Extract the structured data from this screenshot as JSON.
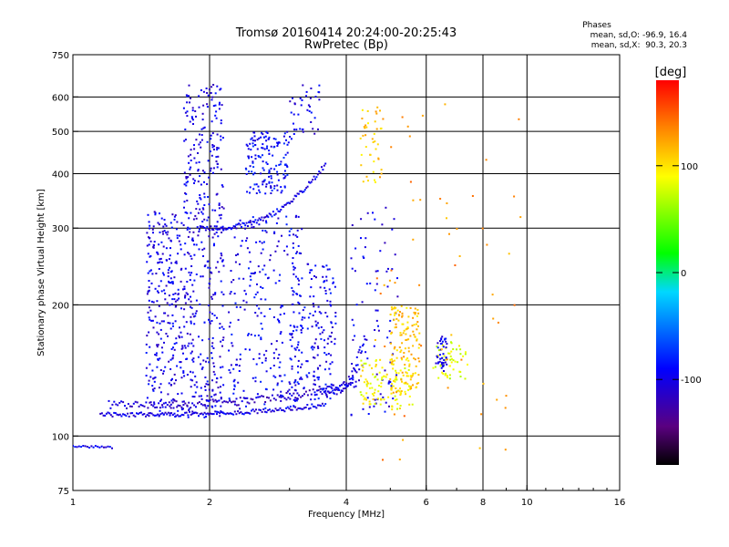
{
  "chart_data": {
    "type": "scatter",
    "title": "Tromsø 20160414 20:24:00-20:25:43",
    "subtitle": "RwPretec (Bp)",
    "xlabel": "Frequency [MHz]",
    "ylabel": "Stationary phase Virtual Height [km]",
    "x_scale": "log",
    "y_scale": "log",
    "xlim": [
      1,
      16
    ],
    "ylim": [
      75,
      750
    ],
    "x_ticks": [
      "1",
      "2",
      "4",
      "6",
      "8",
      "10",
      "16"
    ],
    "y_ticks": [
      "75",
      "100",
      "200",
      "300",
      "400",
      "500",
      "600",
      "750"
    ],
    "x_grid": [
      2,
      4,
      6,
      8,
      10
    ],
    "y_grid": [
      100,
      200,
      300,
      400,
      500,
      600
    ],
    "phases_legend": {
      "title": "Phases",
      "line_o": "mean, sd,O: -96.9, 16.4",
      "line_x": "mean, sd,X:  90.3, 20.3"
    },
    "colorbar": {
      "label": "[deg]",
      "range": [
        -180,
        180
      ],
      "ticks": [
        "100",
        "0",
        "-100"
      ],
      "tick_values": [
        100,
        0,
        -100
      ]
    },
    "series": [
      {
        "phase": -100,
        "trace": "line",
        "x0": 1.0,
        "x1": 1.22,
        "h0": 95,
        "h1": 94,
        "n": 20,
        "jitter": 0.006
      },
      {
        "phase": -100,
        "trace": "curve",
        "x0": 1.15,
        "x1": 3.6,
        "h0": 112,
        "h1": 118,
        "n": 150,
        "jitter": 0.012
      },
      {
        "phase": -110,
        "trace": "curve",
        "x0": 1.2,
        "x1": 4.2,
        "h0": 118,
        "h1": 132,
        "n": 140,
        "jitter": 0.02
      },
      {
        "phase": -100,
        "trace": "curve",
        "x0": 1.9,
        "x1": 3.6,
        "h0": 300,
        "h1": 420,
        "n": 100,
        "jitter": 0.012
      },
      {
        "phase": -100,
        "trace": "curve",
        "x0": 3.6,
        "x1": 4.4,
        "h0": 125,
        "h1": 170,
        "n": 50,
        "jitter": 0.03
      },
      {
        "phase": -100,
        "trace": "cloud",
        "x0": 1.45,
        "x1": 1.75,
        "h0": 110,
        "h1": 330,
        "n": 280
      },
      {
        "phase": -100,
        "trace": "cloud",
        "x0": 1.75,
        "x1": 2.15,
        "h0": 110,
        "h1": 640,
        "n": 420
      },
      {
        "phase": -95,
        "trace": "cloud",
        "x0": 2.2,
        "x1": 3.2,
        "h0": 115,
        "h1": 320,
        "n": 260
      },
      {
        "phase": -90,
        "trace": "cloud",
        "x0": 2.4,
        "x1": 3.0,
        "h0": 360,
        "h1": 500,
        "n": 150
      },
      {
        "phase": -95,
        "trace": "cloud",
        "x0": 3.0,
        "x1": 3.8,
        "h0": 120,
        "h1": 250,
        "n": 180
      },
      {
        "phase": -100,
        "trace": "cloud",
        "x0": 3.0,
        "x1": 3.5,
        "h0": 480,
        "h1": 640,
        "n": 40
      },
      {
        "phase": -100,
        "trace": "cloud",
        "x0": 4.1,
        "x1": 5.2,
        "h0": 110,
        "h1": 340,
        "n": 90
      },
      {
        "phase": 90,
        "trace": "cloud",
        "x0": 4.3,
        "x1": 5.6,
        "h0": 115,
        "h1": 150,
        "n": 110
      },
      {
        "phase": 110,
        "trace": "cloud",
        "x0": 5.0,
        "x1": 5.8,
        "h0": 125,
        "h1": 200,
        "n": 140
      },
      {
        "phase": 80,
        "trace": "cloud",
        "x0": 6.2,
        "x1": 7.4,
        "h0": 135,
        "h1": 165,
        "n": 50
      },
      {
        "phase": 110,
        "trace": "cloud",
        "x0": 4.3,
        "x1": 4.8,
        "h0": 380,
        "h1": 580,
        "n": 40
      },
      {
        "phase": -100,
        "trace": "cloud",
        "x0": 6.3,
        "x1": 6.7,
        "h0": 140,
        "h1": 170,
        "n": 40
      },
      {
        "phase": 130,
        "trace": "cloud",
        "x0": 4.6,
        "x1": 9.8,
        "h0": 85,
        "h1": 620,
        "n": 60
      }
    ]
  }
}
